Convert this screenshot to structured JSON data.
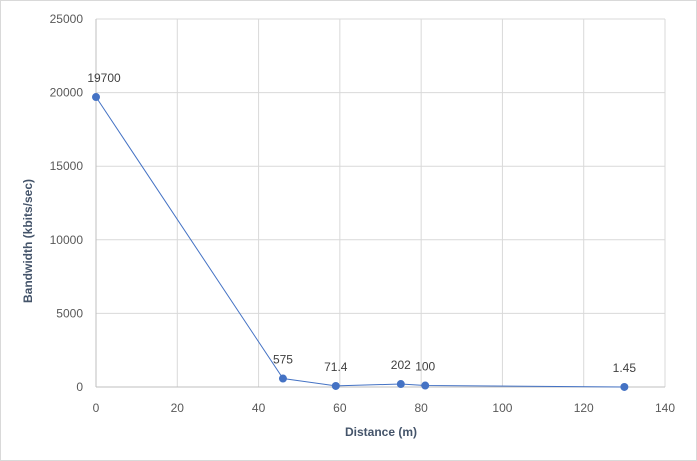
{
  "chart_data": {
    "type": "scatter",
    "title": "",
    "xlabel": "Distance (m)",
    "ylabel": "Bandwidth (kbits/sec)",
    "xlim": [
      0,
      140
    ],
    "ylim": [
      0,
      25000
    ],
    "xticks": [
      0,
      20,
      40,
      60,
      80,
      100,
      120,
      140
    ],
    "yticks": [
      0,
      5000,
      10000,
      15000,
      20000,
      25000
    ],
    "grid": true,
    "legend": "none",
    "series": [
      {
        "color": "#4472c4",
        "points": [
          {
            "x": 0,
            "y": 19700,
            "label": "19700"
          },
          {
            "x": 46,
            "y": 575,
            "label": "575"
          },
          {
            "x": 59,
            "y": 71.4,
            "label": "71.4"
          },
          {
            "x": 75,
            "y": 202,
            "label": "202"
          },
          {
            "x": 81,
            "y": 100,
            "label": "100"
          },
          {
            "x": 130,
            "y": 1.45,
            "label": "1.45"
          }
        ]
      }
    ]
  }
}
